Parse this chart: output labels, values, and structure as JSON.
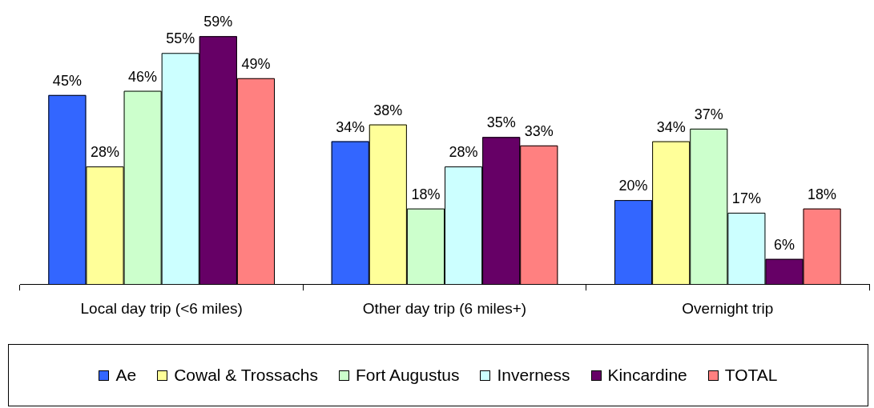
{
  "chart_data": {
    "type": "bar",
    "categories": [
      "Local day trip (<6 miles)",
      "Other day trip (6 miles+)",
      "Overnight trip"
    ],
    "series": [
      {
        "name": "Ae",
        "color": "#3366ff",
        "values": [
          45,
          34,
          20
        ],
        "value_labels": [
          "45%",
          "34%",
          "20%"
        ]
      },
      {
        "name": "Cowal & Trossachs",
        "color": "#ffff99",
        "values": [
          28,
          38,
          34
        ],
        "value_labels": [
          "28%",
          "38%",
          "34%"
        ]
      },
      {
        "name": "Fort Augustus",
        "color": "#ccffcc",
        "values": [
          46,
          18,
          37
        ],
        "value_labels": [
          "46%",
          "18%",
          "37%"
        ]
      },
      {
        "name": "Inverness",
        "color": "#ccffff",
        "values": [
          55,
          28,
          17
        ],
        "value_labels": [
          "55%",
          "28%",
          "17%"
        ]
      },
      {
        "name": "Kincardine",
        "color": "#660066",
        "values": [
          59,
          35,
          6
        ],
        "value_labels": [
          "59%",
          "35%",
          "6%"
        ]
      },
      {
        "name": "TOTAL",
        "color": "#ff8080",
        "values": [
          49,
          33,
          18
        ],
        "value_labels": [
          "49%",
          "33%",
          "18%"
        ]
      }
    ],
    "legend": "bottom",
    "tick_labels": "x"
  }
}
